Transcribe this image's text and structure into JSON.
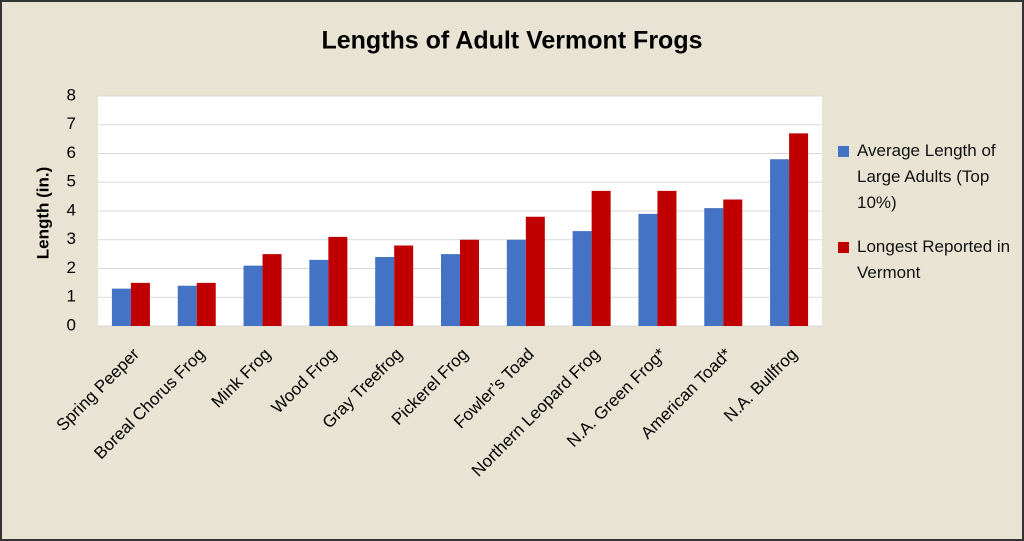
{
  "chart_data": {
    "type": "bar",
    "title": "Lengths of Adult Vermont Frogs",
    "y_label": "Length (in.)",
    "categories": [
      "Spring Peeper",
      "Boreal Chorus Frog",
      "Mink Frog",
      "Wood Frog",
      "Gray Treefrog",
      "Pickerel Frog",
      "Fowler’s Toad",
      "Northern Leopard Frog",
      "N.A. Green Frog*",
      "American Toad*",
      "N.A. Bullfrog"
    ],
    "series": [
      {
        "name": "Average Length of Large Adults (Top 10%)",
        "color": "#4472c4",
        "values": [
          1.3,
          1.4,
          2.1,
          2.3,
          2.4,
          2.5,
          3.0,
          3.3,
          3.9,
          4.1,
          5.8
        ]
      },
      {
        "name": "Longest Reported in Vermont",
        "color": "#c00000",
        "values": [
          1.5,
          1.5,
          2.5,
          3.1,
          2.8,
          3.0,
          3.8,
          4.7,
          4.7,
          4.4,
          6.7
        ]
      }
    ],
    "ylim": [
      0,
      8
    ],
    "yticks": [
      0,
      1,
      2,
      3,
      4,
      5,
      6,
      7,
      8
    ],
    "grid": true,
    "legend": "right"
  }
}
